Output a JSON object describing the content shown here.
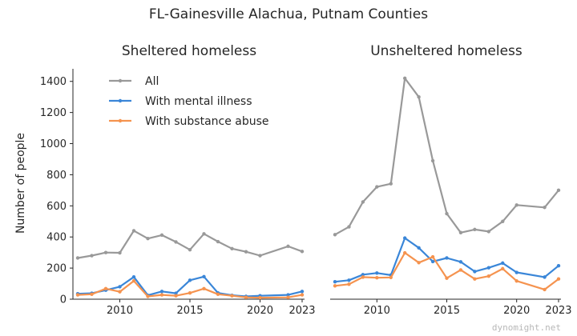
{
  "chart_data": {
    "type": "line",
    "title": "FL-Gainesville Alachua, Putnam Counties",
    "ylabel": "Number of people",
    "xlim": [
      2007,
      2023
    ],
    "ylim": [
      0,
      1450
    ],
    "x_ticks": [
      2010,
      2015,
      2020,
      2023
    ],
    "y_ticks": [
      0,
      200,
      400,
      600,
      800,
      1000,
      1200,
      1400
    ],
    "legend": [
      "All",
      "With mental illness",
      "With substance abuse"
    ],
    "colors": {
      "All": "#999999",
      "With mental illness": "#3a86d8",
      "With substance abuse": "#f5934f"
    },
    "watermark": "dynomight.net",
    "panels": [
      {
        "title": "Sheltered homeless",
        "series": [
          {
            "name": "All",
            "x": [
              2007,
              2008,
              2009,
              2010,
              2011,
              2012,
              2013,
              2014,
              2015,
              2016,
              2017,
              2018,
              2019,
              2020,
              2022,
              2023
            ],
            "values": [
              265,
              280,
              300,
              298,
              440,
              390,
              412,
              368,
              318,
              420,
              370,
              325,
              305,
              280,
              340,
              307
            ]
          },
          {
            "name": "With mental illness",
            "x": [
              2007,
              2008,
              2009,
              2010,
              2011,
              2012,
              2013,
              2014,
              2015,
              2016,
              2017,
              2018,
              2019,
              2020,
              2022,
              2023
            ],
            "values": [
              35,
              38,
              58,
              80,
              143,
              25,
              50,
              38,
              122,
              145,
              40,
              25,
              18,
              22,
              28,
              50
            ]
          },
          {
            "name": "With substance abuse",
            "x": [
              2007,
              2008,
              2009,
              2010,
              2011,
              2012,
              2013,
              2014,
              2015,
              2016,
              2017,
              2018,
              2019,
              2020,
              2022,
              2023
            ],
            "values": [
              28,
              32,
              68,
              48,
              118,
              18,
              28,
              22,
              40,
              68,
              32,
              22,
              12,
              10,
              12,
              28
            ]
          }
        ]
      },
      {
        "title": "Unsheltered homeless",
        "series": [
          {
            "name": "All",
            "x": [
              2007,
              2008,
              2009,
              2010,
              2011,
              2012,
              2013,
              2014,
              2015,
              2016,
              2017,
              2018,
              2019,
              2020,
              2022,
              2023
            ],
            "values": [
              415,
              465,
              625,
              722,
              742,
              1420,
              1300,
              890,
              550,
              428,
              448,
              435,
              500,
              605,
              590,
              700
            ]
          },
          {
            "name": "With mental illness",
            "x": [
              2007,
              2008,
              2009,
              2010,
              2011,
              2012,
              2013,
              2014,
              2015,
              2016,
              2017,
              2018,
              2019,
              2020,
              2022,
              2023
            ],
            "values": [
              112,
              122,
              158,
              168,
              155,
              393,
              330,
              242,
              265,
              240,
              178,
              202,
              232,
              172,
              142,
              215
            ]
          },
          {
            "name": "With substance abuse",
            "x": [
              2007,
              2008,
              2009,
              2010,
              2011,
              2012,
              2013,
              2014,
              2015,
              2016,
              2017,
              2018,
              2019,
              2020,
              2022,
              2023
            ],
            "values": [
              86,
              96,
              142,
              138,
              140,
              298,
              235,
              272,
              135,
              188,
              130,
              148,
              196,
              117,
              62,
              130
            ]
          }
        ]
      }
    ]
  }
}
